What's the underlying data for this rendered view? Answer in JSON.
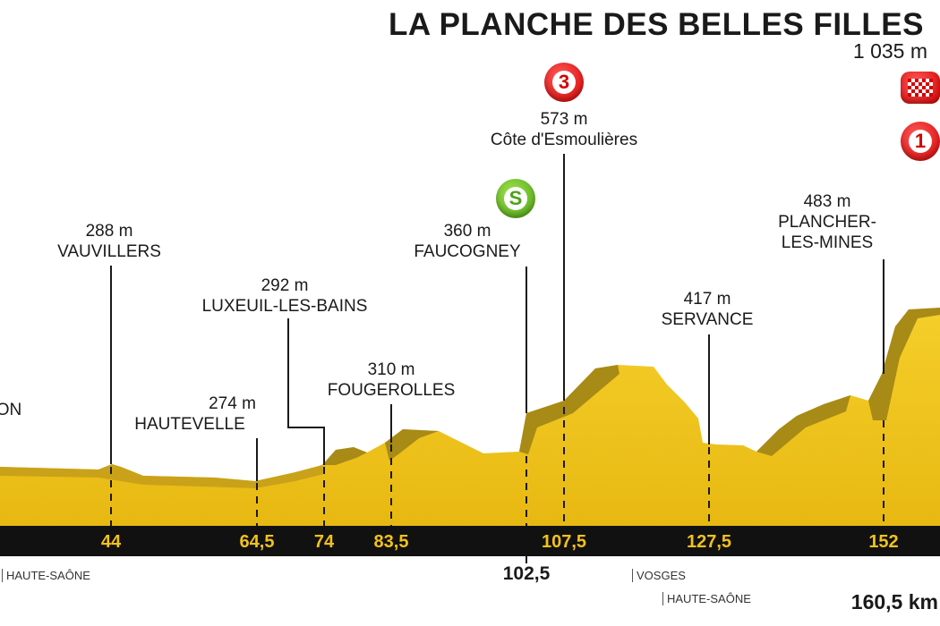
{
  "stage": {
    "finish_name": "LA PLANCHE DES BELLES FILLES",
    "finish_altitude": "1 035 m",
    "total_distance": "160,5 km",
    "start_partial_label": "ON"
  },
  "waypoints": [
    {
      "km": "44",
      "altitude": "288 m",
      "name": "VAUVILLERS"
    },
    {
      "km": "64,5",
      "altitude": "274 m",
      "name": "HAUTEVELLE"
    },
    {
      "km": "74",
      "altitude": "292 m",
      "name": "LUXEUIL-LES-BAINS"
    },
    {
      "km": "83,5",
      "altitude": "310 m",
      "name": "FOUGEROLLES"
    },
    {
      "km": "102,5",
      "altitude": "360 m",
      "name": "FAUCOGNEY"
    },
    {
      "km": "107,5",
      "altitude": "573 m",
      "name": "Côte d'Esmoulières"
    },
    {
      "km": "127,5",
      "altitude": "417 m",
      "name": "SERVANCE"
    },
    {
      "km": "152",
      "altitude": "483 m",
      "name_line1": "PLANCHER-",
      "name_line2": "LES-MINES"
    }
  ],
  "badges": {
    "sprint": "S",
    "climb_cat3": "3",
    "climb_cat1": "1",
    "finish_icon": "checkered-flag-icon"
  },
  "regions": [
    {
      "label": "HAUTE-SAÔNE"
    },
    {
      "label": "VOSGES"
    },
    {
      "label": "HAUTE-SAÔNE"
    }
  ],
  "colors": {
    "profile_fill": "#f2c21a",
    "profile_shade": "#a88a16",
    "axis_bar": "#111111",
    "km_text": "#f2c21a",
    "climb_red": "#d40000",
    "sprint_green": "#4ea316"
  }
}
